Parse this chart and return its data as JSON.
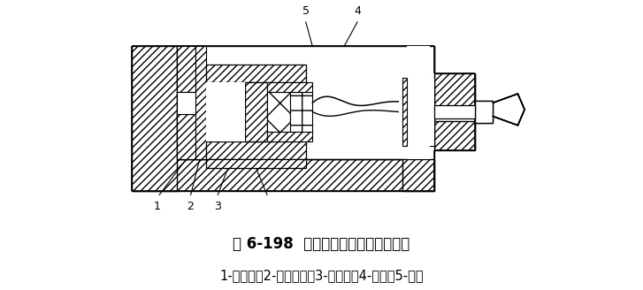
{
  "title": "图 6-198  钢弦式双膜土压力计的构造",
  "caption": "1-刚性板；2-弹性薄板；3-传力轴；4-弦夹；5-钢弦",
  "title_fontsize": 12,
  "caption_fontsize": 10.5,
  "bg_color": "#ffffff",
  "line_color": "#000000",
  "label_1": "1",
  "label_2": "2",
  "label_3": "3",
  "label_4": "4",
  "label_5": "5",
  "fig_w": 7.27,
  "fig_h": 3.28,
  "dpi": 100
}
